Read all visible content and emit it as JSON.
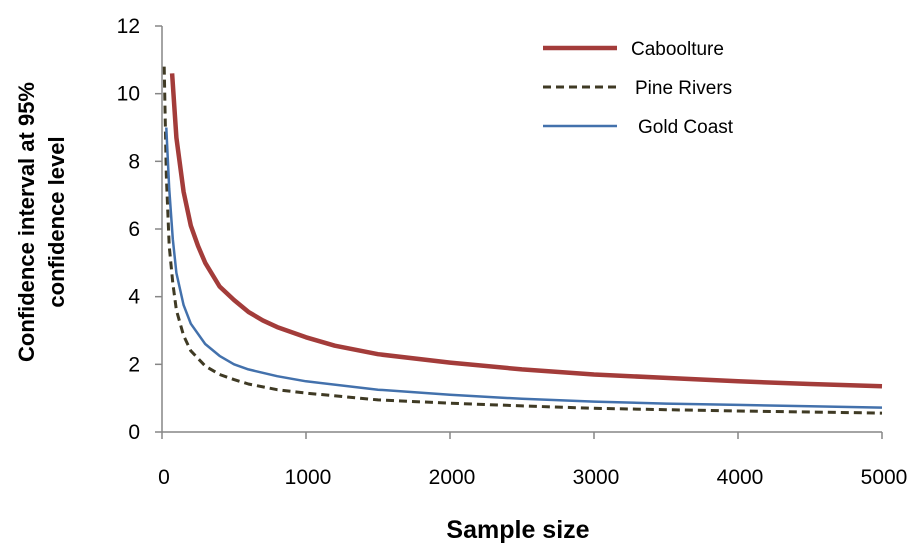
{
  "chart_data": {
    "type": "line",
    "title": "",
    "xlabel": "Sample size",
    "ylabel_lines": [
      "Confidence interval at 95%",
      "confidence level"
    ],
    "xlim": [
      0,
      5000
    ],
    "ylim": [
      0,
      12
    ],
    "xticks": [
      "0",
      "1000",
      "2000",
      "3000",
      "4000",
      "5000"
    ],
    "yticks": [
      "0",
      "2",
      "4",
      "6",
      "8",
      "10",
      "12"
    ],
    "grid": false,
    "legend_position": "top-right",
    "series": [
      {
        "name": "Caboolture",
        "color": "#a33c3a",
        "style": "solid-thick",
        "x": [
          70,
          100,
          150,
          200,
          250,
          300,
          400,
          500,
          600,
          700,
          800,
          1000,
          1200,
          1500,
          2000,
          2500,
          3000,
          3500,
          4000,
          4500,
          5000
        ],
        "y": [
          10.6,
          8.7,
          7.1,
          6.1,
          5.5,
          5.0,
          4.3,
          3.9,
          3.55,
          3.3,
          3.1,
          2.8,
          2.55,
          2.3,
          2.05,
          1.85,
          1.7,
          1.6,
          1.5,
          1.42,
          1.35
        ]
      },
      {
        "name": "Pine Rivers",
        "color": "#3f3a24",
        "style": "dashed",
        "x": [
          15,
          30,
          50,
          75,
          100,
          150,
          200,
          300,
          400,
          500,
          600,
          800,
          1000,
          1500,
          2000,
          2500,
          3000,
          3500,
          4000,
          4500,
          5000
        ],
        "y": [
          10.8,
          7.6,
          5.5,
          4.4,
          3.6,
          2.85,
          2.4,
          1.95,
          1.7,
          1.55,
          1.42,
          1.25,
          1.15,
          0.95,
          0.85,
          0.77,
          0.7,
          0.66,
          0.62,
          0.59,
          0.56
        ]
      },
      {
        "name": "Gold Coast",
        "color": "#4371ac",
        "style": "solid",
        "x": [
          30,
          50,
          75,
          100,
          150,
          200,
          300,
          400,
          500,
          600,
          800,
          1000,
          1500,
          2000,
          2500,
          3000,
          3500,
          4000,
          4500,
          5000
        ],
        "y": [
          9.0,
          7.2,
          5.7,
          4.7,
          3.75,
          3.2,
          2.6,
          2.25,
          2.0,
          1.85,
          1.65,
          1.5,
          1.25,
          1.1,
          0.98,
          0.9,
          0.84,
          0.8,
          0.76,
          0.72
        ]
      }
    ]
  }
}
